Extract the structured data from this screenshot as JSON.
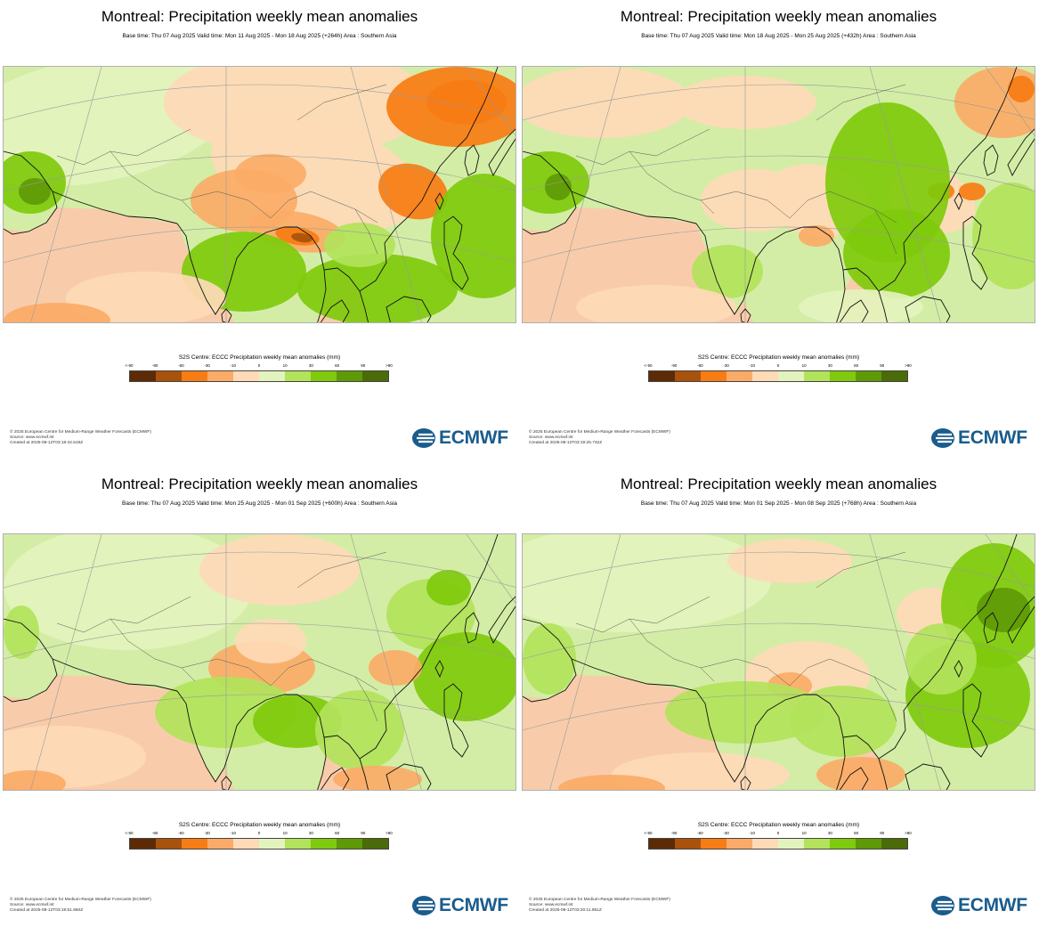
{
  "colors": {
    "brand": "#1a5c8c",
    "ocean_base": "#f8ccaa",
    "land_base": "#d3eda6",
    "scale": [
      "#5c2b06",
      "#a8520b",
      "#f77c14",
      "#fbab67",
      "#fedab7",
      "#e3f3bd",
      "#b2e35b",
      "#7fca0c",
      "#5e9a06",
      "#4b6b08"
    ]
  },
  "colorbar": {
    "title": "S2S Centre: ECCC Precipitation weekly mean anomalies (mm)",
    "ticks": [
      "<-90",
      "-90",
      "-60",
      "-30",
      "-10",
      "0",
      "10",
      "30",
      "60",
      "90",
      ">90"
    ]
  },
  "logo": {
    "text": "ECMWF",
    "icon": "ecmwf-logo-icon"
  },
  "panels": [
    {
      "title": "Montreal: Precipitation weekly mean anomalies",
      "subtitle": "Base time: Thu 07 Aug 2025 Valid time: Mon 11 Aug 2025 - Mon 18 Aug 2025 (+264h) Area : Southern Asia",
      "footer": [
        "© 2025 European Centre for Medium-Range Weather Forecasts (ECMWF)",
        "Source: www.ecmwf.int",
        "Created at 2025-08-12T03:18:42.519Z"
      ],
      "pattern": "dry-northeast-strong"
    },
    {
      "title": "Montreal: Precipitation weekly mean anomalies",
      "subtitle": "Base time: Thu 07 Aug 2025 Valid time: Mon 18 Aug 2025 - Mon 25 Aug 2025 (+432h) Area : Southern Asia",
      "footer": [
        "© 2025 European Centre for Medium-Range Weather Forecasts (ECMWF)",
        "Source: www.ecmwf.int",
        "Created at 2025-08-12T03:19:25.732Z"
      ],
      "pattern": "wet-east"
    },
    {
      "title": "Montreal: Precipitation weekly mean anomalies",
      "subtitle": "Base time: Thu 07 Aug 2025 Valid time: Mon 25 Aug 2025 - Mon 01 Sep 2025 (+600h) Area : Southern Asia",
      "footer": [
        "© 2025 European Centre for Medium-Range Weather Forecasts (ECMWF)",
        "Source: www.ecmwf.int",
        "Created at 2025-08-12T03:19:51.860Z"
      ],
      "pattern": "mixed-weak"
    },
    {
      "title": "Montreal: Precipitation weekly mean anomalies",
      "subtitle": "Base time: Thu 07 Aug 2025 Valid time: Mon 01 Sep 2025 - Mon 08 Sep 2025 (+768h) Area : Southern Asia",
      "footer": [
        "© 2025 European Centre for Medium-Range Weather Forecasts (ECMWF)",
        "Source: www.ecmwf.int",
        "Created at 2025-08-12T03:20:11.951Z"
      ],
      "pattern": "wet-pacific"
    }
  ]
}
